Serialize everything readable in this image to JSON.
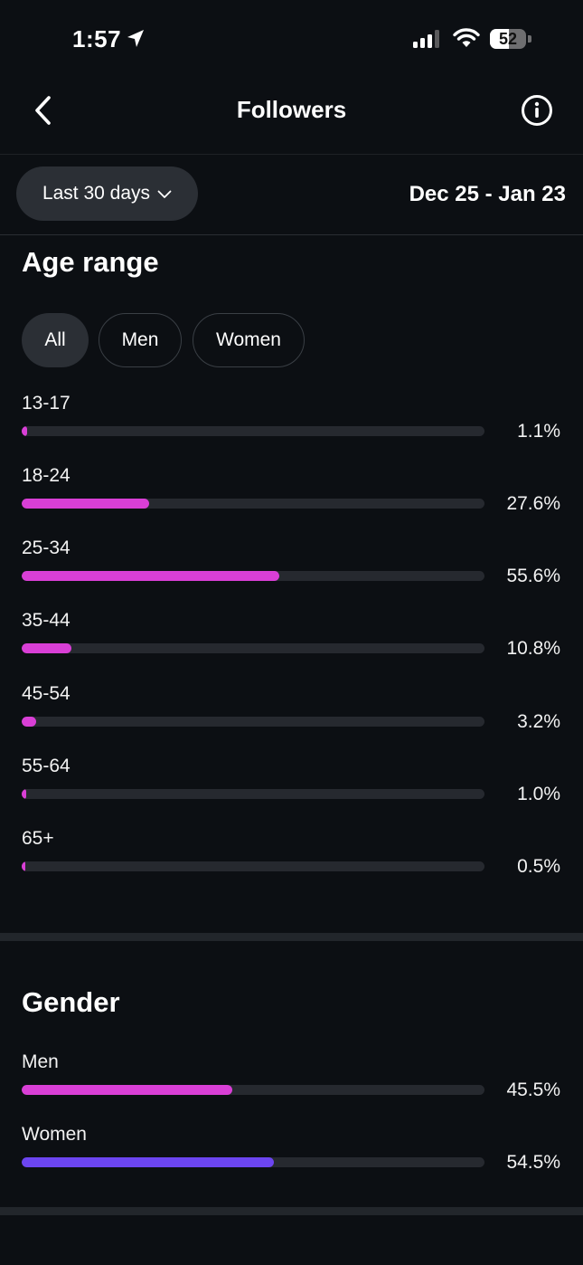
{
  "status_bar": {
    "time": "1:57",
    "battery_text": "52",
    "battery_level": 0.52
  },
  "header": {
    "title": "Followers"
  },
  "filter": {
    "range_label": "Last 30 days",
    "date_range": "Dec 25 - Jan 23"
  },
  "age_section": {
    "title": "Age range",
    "chips": [
      {
        "label": "All",
        "selected": true
      },
      {
        "label": "Men",
        "selected": false
      },
      {
        "label": "Women",
        "selected": false
      }
    ],
    "rows": [
      {
        "label": "13-17",
        "value_text": "1.1%",
        "value": 1.1
      },
      {
        "label": "18-24",
        "value_text": "27.6%",
        "value": 27.6
      },
      {
        "label": "25-34",
        "value_text": "55.6%",
        "value": 55.6
      },
      {
        "label": "35-44",
        "value_text": "10.8%",
        "value": 10.8
      },
      {
        "label": "45-54",
        "value_text": "3.2%",
        "value": 3.2
      },
      {
        "label": "55-64",
        "value_text": "1.0%",
        "value": 1.0
      },
      {
        "label": "65+",
        "value_text": "0.5%",
        "value": 0.5
      }
    ]
  },
  "gender_section": {
    "title": "Gender",
    "rows": [
      {
        "label": "Men",
        "value_text": "45.5%",
        "value": 45.5
      },
      {
        "label": "Women",
        "value_text": "54.5%",
        "value": 54.5
      }
    ]
  },
  "colors": {
    "background": "#0c0f13",
    "bar_track": "#26292f",
    "age_bar": "#d93fd6",
    "men_bar": "#d93fd6",
    "women_bar": "#6c45f0"
  },
  "icons": {
    "back": "chevron-left-icon",
    "info": "info-icon",
    "dropdown": "chevron-down-icon",
    "location": "location-arrow-icon",
    "signal": "cellular-signal-icon",
    "wifi": "wifi-icon",
    "battery": "battery-icon"
  }
}
